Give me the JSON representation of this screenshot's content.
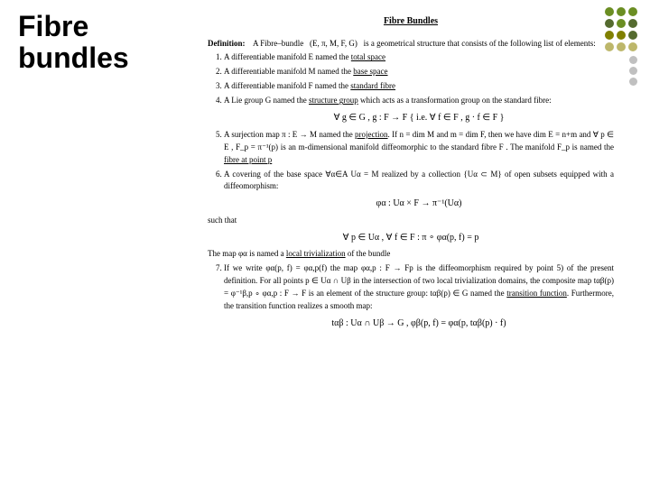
{
  "slide": {
    "title_line1": "Fibre",
    "title_line2": "bundles"
  },
  "decor": {
    "dot_colors_grid": [
      "#6b8e23",
      "#6b8e23",
      "#6b8e23",
      "#556b2f",
      "#6b8e23",
      "#556b2f",
      "#808000",
      "#808000",
      "#556b2f",
      "#bdb76b",
      "#bdb76b",
      "#bdb76b"
    ],
    "extra_dot_colors": [
      "#c0c0c0",
      "#c0c0c0",
      "#c0c0c0"
    ]
  },
  "document": {
    "title": "Fibre Bundles",
    "def_label": "Definition:",
    "def_intro_a": "A Fibre–bundle",
    "def_tuple": "(E, π, M, F, G)",
    "def_intro_b": "is a geometrical structure that consists of the following list of elements:",
    "items": {
      "i1": "A differentiable manifold  E  named the ",
      "i1_u": "total space",
      "i2": "A differentiable manifold  M  named the ",
      "i2_u": "base space",
      "i3": "A differentiable manifold  F  named the ",
      "i3_u": "standard fibre",
      "i4_a": "A Lie group  G  named the ",
      "i4_u": "structure group",
      "i4_b": " which acts as a transformation group on the standard fibre:",
      "formula1": "∀ g ∈ G , g : F → F   { i.e. ∀ f ∈ F , g · f ∈ F }",
      "i5_a": "A surjection map  π : E → M  named the ",
      "i5_u": "projection",
      "i5_b": ". If  n = dim M  and m = dim F, then we have dim E = n+m and   ∀ p ∈ E , F_p = π⁻¹(p)   is an m-dimensional manifold diffeomorphic to the standard fibre  F . The manifold  F_p  is named the ",
      "i5_u2": "fibre at point p",
      "i6_a": "A covering of the base space  ∀α∈A Uα = M  realized by a collection  {Uα ⊂ M}  of open subsets equipped with a diffeomorphism:",
      "formula2": "φα : Uα × F → π⁻¹(Uα)",
      "such_that": "such that",
      "formula3": "∀ p ∈ Uα , ∀ f ∈ F  :  π ∘ φα(p, f) = p",
      "local_triv": "The map  φα  is named a ",
      "local_triv_u": "local trivialization",
      "local_triv_b": " of the bundle",
      "i7_a": "If we write  φα(p, f) = φα,p(f)  the map  φα,p : F → Fp  is the diffeomorphism required by point 5) of the present definition. For all points  p ∈ Uα ∩ Uβ  in the intersection of two local trivialization domains, the composite map   tαβ(p) = φ⁻¹β,p ∘ φα,p : F → F   is an element of the structure group:   tαβ(p) ∈ G   named the ",
      "i7_u": "transition function",
      "i7_b": ". Furthermore, the transition function realizes a smooth map:",
      "formula4": "tαβ : Uα ∩ Uβ → G  ,   φβ(p, f) = φα(p, tαβ(p) · f)"
    }
  }
}
